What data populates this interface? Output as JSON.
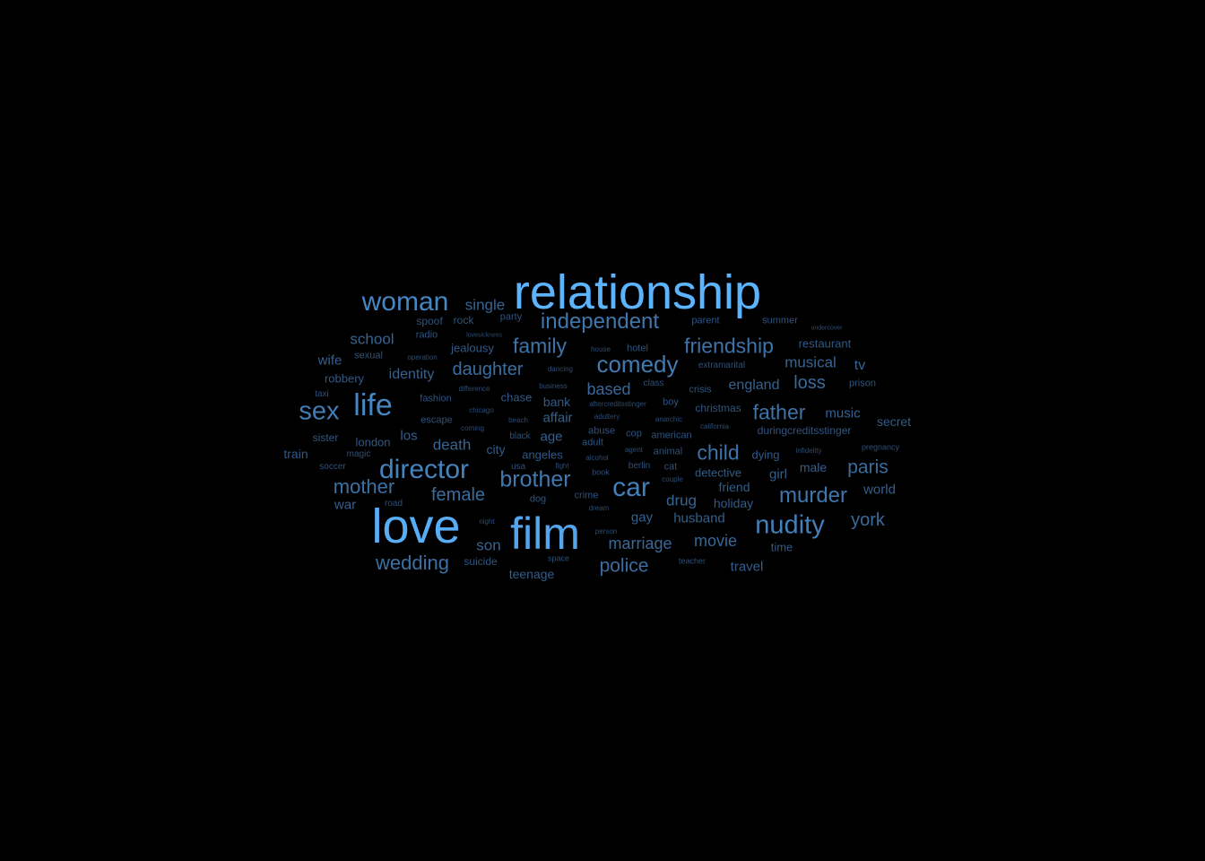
{
  "background_color": "#000000",
  "words": [
    {
      "text": "relationship",
      "weight": 1.0
    },
    {
      "text": "love",
      "weight": 0.93
    },
    {
      "text": "film",
      "weight": 0.86
    },
    {
      "text": "woman",
      "weight": 0.58
    },
    {
      "text": "life",
      "weight": 0.58
    },
    {
      "text": "director",
      "weight": 0.55
    },
    {
      "text": "car",
      "weight": 0.52
    },
    {
      "text": "nudity",
      "weight": 0.52
    },
    {
      "text": "sex",
      "weight": 0.5
    },
    {
      "text": "comedy",
      "weight": 0.48
    },
    {
      "text": "brother",
      "weight": 0.46
    },
    {
      "text": "murder",
      "weight": 0.44
    },
    {
      "text": "independent",
      "weight": 0.44
    },
    {
      "text": "friendship",
      "weight": 0.42
    },
    {
      "text": "family",
      "weight": 0.42
    },
    {
      "text": "father",
      "weight": 0.42
    },
    {
      "text": "child",
      "weight": 0.42
    },
    {
      "text": "mother",
      "weight": 0.39
    },
    {
      "text": "wedding",
      "weight": 0.39
    },
    {
      "text": "daughter",
      "weight": 0.37
    },
    {
      "text": "female",
      "weight": 0.36
    },
    {
      "text": "police",
      "weight": 0.37
    },
    {
      "text": "paris",
      "weight": 0.36
    },
    {
      "text": "york",
      "weight": 0.35
    },
    {
      "text": "loss",
      "weight": 0.35
    },
    {
      "text": "based",
      "weight": 0.32
    },
    {
      "text": "marriage",
      "weight": 0.33
    },
    {
      "text": "movie",
      "weight": 0.33
    },
    {
      "text": "single",
      "weight": 0.3
    },
    {
      "text": "school",
      "weight": 0.3
    },
    {
      "text": "musical",
      "weight": 0.3
    },
    {
      "text": "death",
      "weight": 0.3
    },
    {
      "text": "son",
      "weight": 0.3
    },
    {
      "text": "identity",
      "weight": 0.28
    },
    {
      "text": "drug",
      "weight": 0.3
    },
    {
      "text": "england",
      "weight": 0.28
    },
    {
      "text": "tv",
      "weight": 0.28
    },
    {
      "text": "affair",
      "weight": 0.27
    },
    {
      "text": "gay",
      "weight": 0.27
    },
    {
      "text": "husband",
      "weight": 0.26
    },
    {
      "text": "music",
      "weight": 0.27
    },
    {
      "text": "war",
      "weight": 0.27
    },
    {
      "text": "wife",
      "weight": 0.27
    },
    {
      "text": "girl",
      "weight": 0.25
    },
    {
      "text": "world",
      "weight": 0.26
    },
    {
      "text": "travel",
      "weight": 0.25
    },
    {
      "text": "age",
      "weight": 0.26
    },
    {
      "text": "male",
      "weight": 0.25
    },
    {
      "text": "restaurant",
      "weight": 0.21
    },
    {
      "text": "teenage",
      "weight": 0.24
    },
    {
      "text": "jealousy",
      "weight": 0.22
    },
    {
      "text": "detective",
      "weight": 0.23
    },
    {
      "text": "chase",
      "weight": 0.22
    },
    {
      "text": "friend",
      "weight": 0.24
    },
    {
      "text": "holiday",
      "weight": 0.23
    },
    {
      "text": "secret",
      "weight": 0.23
    },
    {
      "text": "bank",
      "weight": 0.22
    },
    {
      "text": "city",
      "weight": 0.23
    },
    {
      "text": "los",
      "weight": 0.25
    },
    {
      "text": "london",
      "weight": 0.22
    },
    {
      "text": "angeles",
      "weight": 0.21
    },
    {
      "text": "robbery",
      "weight": 0.22
    },
    {
      "text": "train",
      "weight": 0.22
    },
    {
      "text": "dying",
      "weight": 0.22
    },
    {
      "text": "time",
      "weight": 0.22
    },
    {
      "text": "duringcreditsstinger",
      "weight": 0.19
    },
    {
      "text": "sister",
      "weight": 0.2
    },
    {
      "text": "suicide",
      "weight": 0.19
    },
    {
      "text": "christmas",
      "weight": 0.19
    },
    {
      "text": "spoof",
      "weight": 0.19
    },
    {
      "text": "rock",
      "weight": 0.18
    },
    {
      "text": "prison",
      "weight": 0.18
    },
    {
      "text": "parent",
      "weight": 0.18
    },
    {
      "text": "adult",
      "weight": 0.18
    },
    {
      "text": "boy",
      "weight": 0.18
    },
    {
      "text": "crisis",
      "weight": 0.18
    },
    {
      "text": "dog",
      "weight": 0.18
    },
    {
      "text": "escape",
      "weight": 0.17
    },
    {
      "text": "fashion",
      "weight": 0.17
    },
    {
      "text": "summer",
      "weight": 0.17
    },
    {
      "text": "extramarital",
      "weight": 0.16
    },
    {
      "text": "class",
      "weight": 0.16
    },
    {
      "text": "hotel",
      "weight": 0.17
    },
    {
      "text": "crime",
      "weight": 0.17
    },
    {
      "text": "cop",
      "weight": 0.17
    },
    {
      "text": "abuse",
      "weight": 0.17
    },
    {
      "text": "american",
      "weight": 0.17
    },
    {
      "text": "radio",
      "weight": 0.17
    },
    {
      "text": "sexual",
      "weight": 0.17
    },
    {
      "text": "animal",
      "weight": 0.17
    },
    {
      "text": "cat",
      "weight": 0.17
    },
    {
      "text": "berlin",
      "weight": 0.16
    },
    {
      "text": "soccer",
      "weight": 0.16
    },
    {
      "text": "magic",
      "weight": 0.16
    },
    {
      "text": "party",
      "weight": 0.17
    },
    {
      "text": "usa",
      "weight": 0.16
    },
    {
      "text": "black",
      "weight": 0.16
    },
    {
      "text": "taxi",
      "weight": 0.16
    },
    {
      "text": "road",
      "weight": 0.15
    },
    {
      "text": "pregnancy",
      "weight": 0.15
    },
    {
      "text": "space",
      "weight": 0.15
    },
    {
      "text": "book",
      "weight": 0.15
    },
    {
      "text": "teacher",
      "weight": 0.14
    },
    {
      "text": "business",
      "weight": 0.14
    },
    {
      "text": "difference",
      "weight": 0.13
    },
    {
      "text": "chicago",
      "weight": 0.13
    },
    {
      "text": "beach",
      "weight": 0.13
    },
    {
      "text": "coming",
      "weight": 0.13
    },
    {
      "text": "dancing",
      "weight": 0.13
    },
    {
      "text": "house",
      "weight": 0.13
    },
    {
      "text": "operation",
      "weight": 0.13
    },
    {
      "text": "agent",
      "weight": 0.13
    },
    {
      "text": "alcohol",
      "weight": 0.13
    },
    {
      "text": "fight",
      "weight": 0.13
    },
    {
      "text": "couple",
      "weight": 0.13
    },
    {
      "text": "dream",
      "weight": 0.13
    },
    {
      "text": "night",
      "weight": 0.13
    },
    {
      "text": "person",
      "weight": 0.13
    },
    {
      "text": "adultery",
      "weight": 0.13
    },
    {
      "text": "anarchic",
      "weight": 0.13
    },
    {
      "text": "california",
      "weight": 0.13
    },
    {
      "text": "infidelity",
      "weight": 0.13
    },
    {
      "text": "aftercreditsstinger",
      "weight": 0.12
    },
    {
      "text": "lovesickness",
      "weight": 0.12
    },
    {
      "text": "undercover",
      "weight": 0.12
    }
  ]
}
